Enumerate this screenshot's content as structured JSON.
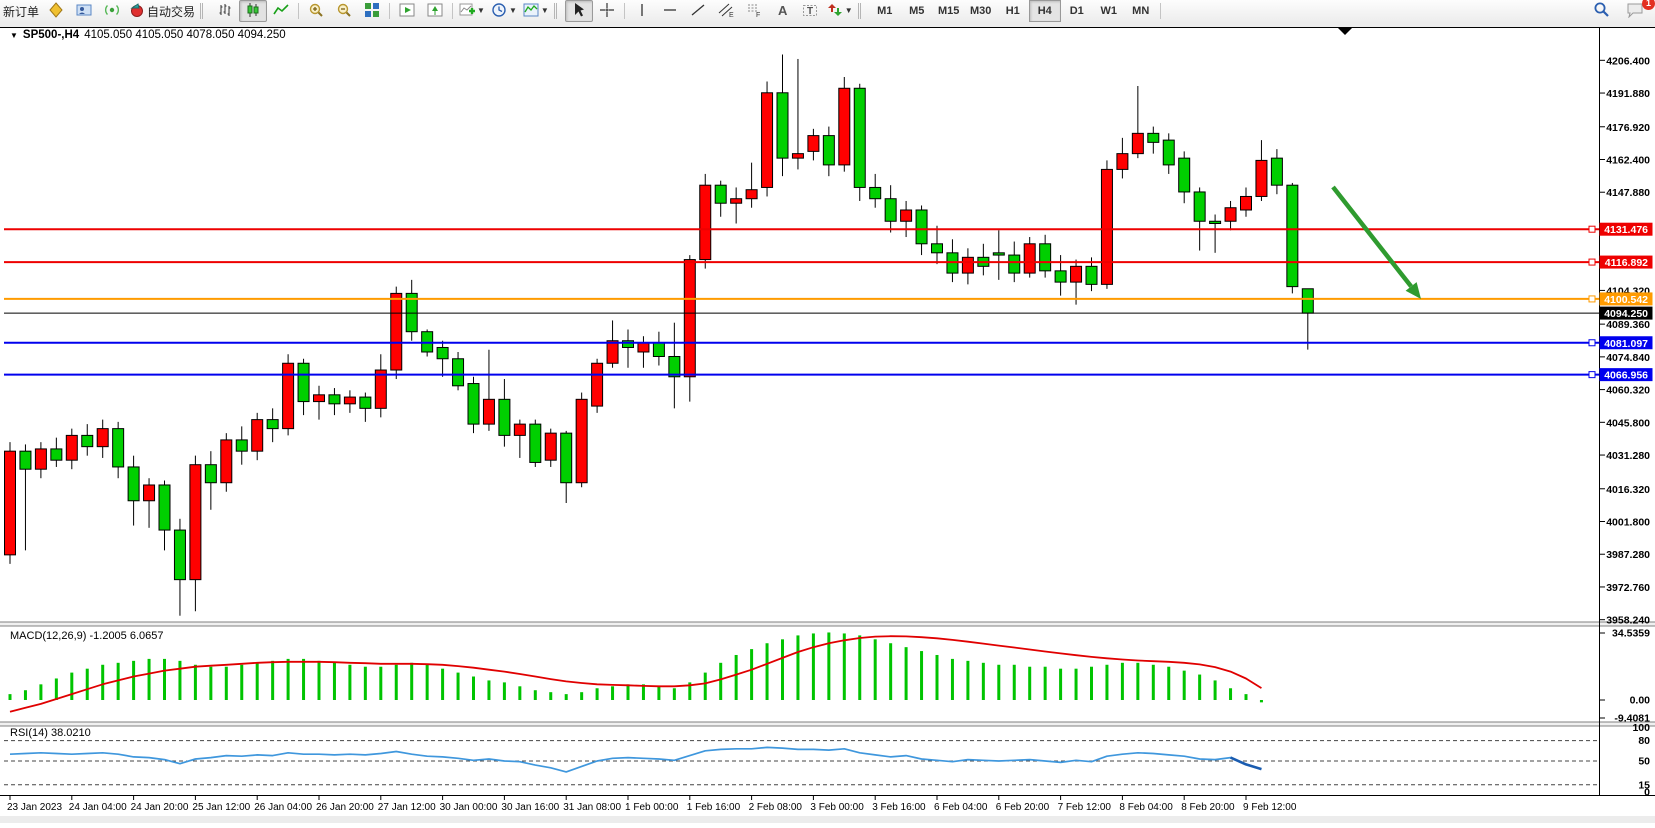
{
  "toolbar": {
    "new_order_label": "新订单",
    "autotrade_label": "自动交易",
    "icons": [
      "new-order",
      "data-window",
      "alerts",
      "autotrade",
      "bar-chart",
      "candlestick-chart",
      "line-chart",
      "zoom-in",
      "zoom-out",
      "tile-windows",
      "auto-scroll",
      "chart-shift",
      "indicators-add",
      "periods",
      "templates",
      "cursor",
      "crosshair",
      "vertical-line",
      "horizontal-line",
      "trendline",
      "equidistant-channel",
      "fibonacci",
      "text",
      "text-label",
      "arrows",
      "search",
      "notifications"
    ],
    "timeframes": [
      "M1",
      "M5",
      "M15",
      "M30",
      "H1",
      "H4",
      "D1",
      "W1",
      "MN"
    ],
    "active_timeframe": "H4",
    "notification_badge": "1"
  },
  "chart": {
    "title": "SP500-,H4",
    "ohlc_text": "4105.050 4105.050 4078.050 4094.250",
    "price_ticks": [
      "4206.400",
      "4191.880",
      "4176.920",
      "4162.400",
      "4147.880",
      "4104.320",
      "4089.360",
      "4074.840",
      "4060.320",
      "4045.800",
      "4031.280",
      "4016.320",
      "4001.800",
      "3987.280",
      "3972.760",
      "3958.240"
    ],
    "lines": [
      {
        "price": 4131.476,
        "label": "4131.476",
        "color": "#ee0000",
        "type": "resistance"
      },
      {
        "price": 4116.892,
        "label": "4116.892",
        "color": "#ee0000",
        "type": "resistance"
      },
      {
        "price": 4100.542,
        "label": "4100.542",
        "color": "#ff9b00",
        "type": "level"
      },
      {
        "price": 4094.25,
        "label": "4094.250",
        "color": "#000000",
        "type": "current-price"
      },
      {
        "price": 4081.097,
        "label": "4081.097",
        "color": "#0000ee",
        "type": "support"
      },
      {
        "price": 4066.956,
        "label": "4066.956",
        "color": "#0000ee",
        "type": "support"
      }
    ],
    "annotation_arrow": {
      "color": "#2f9b2f",
      "direction": "down-right",
      "points_to_price": 4100.5
    }
  },
  "chart_data": {
    "type": "candlestick",
    "symbol": "SP500-",
    "timeframe": "H4",
    "up_color": "#ff0000",
    "down_color": "#00cf00",
    "ylim": [
      3958.1,
      4216.3
    ],
    "x_labels": [
      "23 Jan 2023",
      "24 Jan 04:00",
      "24 Jan 20:00",
      "25 Jan 12:00",
      "26 Jan 04:00",
      "26 Jan 20:00",
      "27 Jan 12:00",
      "30 Jan 00:00",
      "30 Jan 16:00",
      "31 Jan 08:00",
      "1 Feb 00:00",
      "1 Feb 16:00",
      "2 Feb 08:00",
      "3 Feb 00:00",
      "3 Feb 16:00",
      "6 Feb 04:00",
      "6 Feb 20:00",
      "7 Feb 12:00",
      "8 Feb 04:00",
      "8 Feb 20:00",
      "9 Feb 12:00"
    ],
    "candles": [
      [
        3987,
        4037,
        3983,
        4033
      ],
      [
        4033,
        4036,
        3989,
        4025
      ],
      [
        4025,
        4037,
        4021,
        4034
      ],
      [
        4034,
        4039,
        4026,
        4029
      ],
      [
        4029,
        4043,
        4025,
        4040
      ],
      [
        4040,
        4045,
        4031,
        4035
      ],
      [
        4035,
        4047,
        4030,
        4043
      ],
      [
        4043,
        4046,
        4021,
        4026
      ],
      [
        4026,
        4031,
        4000,
        4011
      ],
      [
        4011,
        4021,
        3999,
        4018
      ],
      [
        4018,
        4020,
        3989,
        3998
      ],
      [
        3998,
        4003,
        3960,
        3976
      ],
      [
        3976,
        4031,
        3962,
        4027
      ],
      [
        4027,
        4033,
        4007,
        4019
      ],
      [
        4019,
        4041,
        4015,
        4038
      ],
      [
        4038,
        4044,
        4027,
        4033
      ],
      [
        4033,
        4050,
        4029,
        4047
      ],
      [
        4047,
        4052,
        4037,
        4043
      ],
      [
        4043,
        4076,
        4040,
        4072
      ],
      [
        4072,
        4074,
        4049,
        4055
      ],
      [
        4055,
        4062,
        4047,
        4058
      ],
      [
        4058,
        4061,
        4049,
        4054
      ],
      [
        4054,
        4060,
        4050,
        4057
      ],
      [
        4057,
        4059,
        4046,
        4052
      ],
      [
        4052,
        4076,
        4048,
        4069
      ],
      [
        4069,
        4106,
        4065,
        4103
      ],
      [
        4103,
        4109,
        4082,
        4086
      ],
      [
        4086,
        4087,
        4075,
        4077
      ],
      [
        4079,
        4082,
        4066,
        4074
      ],
      [
        4074,
        4077,
        4060,
        4062
      ],
      [
        4063,
        4066,
        4041,
        4045
      ],
      [
        4045,
        4078,
        4042,
        4056
      ],
      [
        4056,
        4065,
        4035,
        4040
      ],
      [
        4040,
        4047,
        4030,
        4045
      ],
      [
        4045,
        4047,
        4026,
        4028
      ],
      [
        4029,
        4043,
        4026,
        4041
      ],
      [
        4041,
        4042,
        4010,
        4019
      ],
      [
        4019,
        4059,
        4017,
        4056
      ],
      [
        4053,
        4074,
        4050,
        4072
      ],
      [
        4072,
        4091,
        4070,
        4082
      ],
      [
        4082,
        4087,
        4070,
        4079
      ],
      [
        4077,
        4084,
        4070,
        4081
      ],
      [
        4081,
        4086,
        4071,
        4075
      ],
      [
        4075,
        4090,
        4052,
        4066
      ],
      [
        4066,
        4120,
        4055,
        4118
      ],
      [
        4118,
        4156,
        4114,
        4151
      ],
      [
        4151,
        4153,
        4137,
        4143
      ],
      [
        4143,
        4150,
        4134,
        4145
      ],
      [
        4145,
        4161,
        4141,
        4149
      ],
      [
        4150,
        4197,
        4146,
        4192
      ],
      [
        4192,
        4209,
        4155,
        4163
      ],
      [
        4163,
        4207,
        4158,
        4165
      ],
      [
        4166,
        4176,
        4162,
        4173
      ],
      [
        4173,
        4177,
        4155,
        4160
      ],
      [
        4160,
        4199,
        4157,
        4194
      ],
      [
        4194,
        4196,
        4144,
        4150
      ],
      [
        4150,
        4156,
        4141,
        4145
      ],
      [
        4145,
        4151,
        4130,
        4135
      ],
      [
        4135,
        4144,
        4128,
        4140
      ],
      [
        4140,
        4142,
        4120,
        4125
      ],
      [
        4125,
        4133,
        4116,
        4121
      ],
      [
        4121,
        4127,
        4108,
        4112
      ],
      [
        4112,
        4123,
        4107,
        4119
      ],
      [
        4119,
        4125,
        4111,
        4115
      ],
      [
        4121,
        4131,
        4109,
        4120
      ],
      [
        4120,
        4126,
        4108,
        4112
      ],
      [
        4112,
        4128,
        4110,
        4125
      ],
      [
        4125,
        4129,
        4110,
        4113
      ],
      [
        4113,
        4120,
        4102,
        4108
      ],
      [
        4108,
        4118,
        4098,
        4115
      ],
      [
        4115,
        4119,
        4104,
        4107
      ],
      [
        4107,
        4162,
        4105,
        4158
      ],
      [
        4158,
        4172,
        4154,
        4165
      ],
      [
        4165,
        4195,
        4163,
        4174
      ],
      [
        4174,
        4177,
        4165,
        4170
      ],
      [
        4171,
        4174,
        4156,
        4160
      ],
      [
        4163,
        4166,
        4143,
        4148
      ],
      [
        4148,
        4150,
        4122,
        4135
      ],
      [
        4135,
        4138,
        4121,
        4134
      ],
      [
        4135,
        4144,
        4131,
        4141
      ],
      [
        4140,
        4150,
        4137,
        4146
      ],
      [
        4146,
        4171,
        4144,
        4162
      ],
      [
        4163,
        4167,
        4147,
        4151
      ],
      [
        4151,
        4152,
        4103,
        4106
      ],
      [
        4105.05,
        4105.05,
        4078.05,
        4094.25
      ]
    ],
    "indicators": [
      {
        "name": "MACD",
        "label": "MACD(12,26,9)",
        "value": "-1.2005",
        "signal_value": "6.0657",
        "axis_ticks": [
          "34.5359",
          "0.00",
          "-9.4081"
        ],
        "ylim": [
          -11,
          36.5
        ],
        "hist_color": "#00c400",
        "signal_color": "#e00000",
        "histogram": [
          3,
          5,
          8,
          11,
          14,
          16,
          18,
          19,
          20,
          21,
          21,
          20,
          18,
          17,
          17,
          18,
          19,
          20,
          21,
          21,
          20,
          19,
          18,
          17,
          17,
          18,
          19,
          18,
          16,
          14,
          12,
          10,
          9,
          7,
          5,
          4,
          3,
          4,
          6,
          7,
          8,
          8,
          7,
          6,
          9,
          14,
          19,
          23,
          26,
          29,
          31,
          33,
          34,
          34.5,
          34,
          33,
          31,
          29,
          27,
          25,
          23,
          21,
          20,
          19,
          18,
          18,
          17,
          17,
          16,
          16,
          17,
          18,
          19,
          19,
          18,
          17,
          15,
          13,
          10,
          6,
          3,
          -1.2
        ],
        "signal": [
          -6,
          -4,
          -2,
          0.5,
          3,
          5.5,
          8,
          10,
          12,
          13.5,
          15,
          16,
          17,
          17.5,
          18,
          18.5,
          19,
          19.3,
          19.5,
          19.5,
          19.5,
          19.3,
          19,
          18.8,
          18.5,
          18.5,
          18.5,
          18.3,
          18,
          17.3,
          16.5,
          15.5,
          14.5,
          13.3,
          12,
          10.7,
          9.5,
          8.7,
          8,
          7.7,
          7.5,
          7.2,
          7,
          7,
          7.5,
          8.5,
          10.5,
          13,
          15.5,
          18.5,
          21.5,
          24.5,
          27,
          29,
          30.5,
          31.7,
          32.4,
          32.6,
          32.5,
          32.1,
          31.5,
          30.7,
          29.8,
          28.8,
          27.8,
          26.8,
          25.8,
          24.8,
          23.8,
          22.9,
          22,
          21.3,
          20.7,
          20.2,
          19.8,
          19.5,
          19,
          18.2,
          16.8,
          14.5,
          11,
          6.0657
        ]
      },
      {
        "name": "RSI",
        "label": "RSI(14)",
        "value": "38.0210",
        "axis_ticks": [
          "100",
          "80",
          "50",
          "15",
          "0"
        ],
        "levels": [
          80,
          50,
          15
        ],
        "ylim": [
          0,
          100
        ],
        "color": "#3f97dd",
        "tail_color": "#1a5cb0",
        "series": [
          60,
          61,
          62,
          61,
          60,
          61,
          62,
          60,
          56,
          55,
          52,
          46,
          53,
          55,
          58,
          57,
          59,
          58,
          62,
          60,
          60,
          59,
          60,
          59,
          61,
          64,
          60,
          57,
          56,
          54,
          51,
          53,
          50,
          49,
          44,
          40,
          34,
          42,
          50,
          54,
          55,
          54,
          53,
          51,
          58,
          65,
          67,
          68,
          68,
          70,
          69,
          67,
          67,
          66,
          68,
          62,
          59,
          56,
          58,
          53,
          51,
          49,
          52,
          51,
          50,
          51,
          52,
          50,
          48,
          51,
          49,
          57,
          60,
          62,
          61,
          59,
          57,
          53,
          52,
          55,
          45,
          38.02
        ]
      }
    ]
  }
}
